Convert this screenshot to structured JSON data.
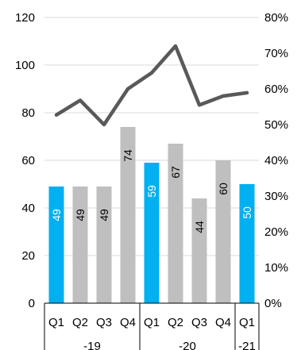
{
  "chart_data": {
    "type": "bar",
    "categories": [
      "Q1",
      "Q2",
      "Q3",
      "Q4",
      "Q1",
      "Q2",
      "Q3",
      "Q4",
      "Q1"
    ],
    "groups": [
      {
        "label": "-19",
        "count": 4
      },
      {
        "label": "-20",
        "count": 4
      },
      {
        "label": "-21",
        "count": 1
      }
    ],
    "series": [
      {
        "type": "bar",
        "axis": "left",
        "values": [
          49,
          49,
          49,
          74,
          59,
          67,
          44,
          60,
          50
        ],
        "data_labels": [
          "49",
          "49",
          "49",
          "74",
          "59",
          "67",
          "44",
          "60",
          "50"
        ],
        "colors": [
          "#00B0F0",
          "#BFBFBF",
          "#BFBFBF",
          "#BFBFBF",
          "#00B0F0",
          "#BFBFBF",
          "#BFBFBF",
          "#BFBFBF",
          "#00B0F0"
        ],
        "label_colors": [
          "#FFFFFF",
          "#000000",
          "#000000",
          "#000000",
          "#FFFFFF",
          "#000000",
          "#000000",
          "#000000",
          "#FFFFFF"
        ]
      },
      {
        "type": "line",
        "axis": "right",
        "values": [
          52.7,
          56.8,
          50.0,
          60.0,
          64.5,
          72.0,
          55.5,
          58.0,
          58.9
        ],
        "color": "#595959"
      }
    ],
    "y_left": {
      "range": [
        0,
        120
      ],
      "ticks": [
        "0",
        "20",
        "40",
        "60",
        "80",
        "100",
        "120"
      ]
    },
    "y_right": {
      "range": [
        0,
        80
      ],
      "ticks": [
        "0%",
        "10%",
        "20%",
        "30%",
        "40%",
        "50%",
        "60%",
        "70%",
        "80%"
      ]
    },
    "grid": true,
    "legend": "none",
    "title": "",
    "xlabel": "",
    "ylabel": ""
  }
}
